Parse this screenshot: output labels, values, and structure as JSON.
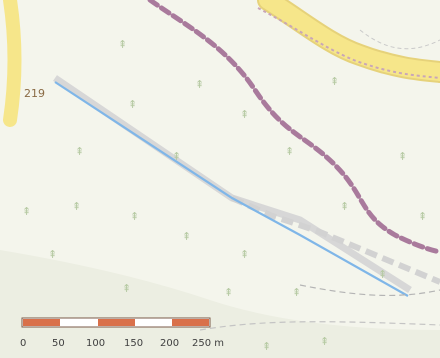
{
  "map": {
    "elevation_label": "219",
    "scale_bar": {
      "ticks": [
        "0",
        "50",
        "100",
        "150",
        "200",
        "250 m"
      ],
      "colors": [
        "#d9704a",
        "#ffffff",
        "#d9704a",
        "#ffffff",
        "#d9704a"
      ]
    },
    "colors": {
      "background": "#f4f5ec",
      "road_yellow": "#f6e68a",
      "road_casing": "#e6d27a",
      "trail_purple": "#a97a9c",
      "stream": "#7fb6e8",
      "path_grey": "#c9c9c9",
      "tree": "#b5c9a2"
    },
    "icons": {
      "forest": "tree-icon"
    }
  }
}
